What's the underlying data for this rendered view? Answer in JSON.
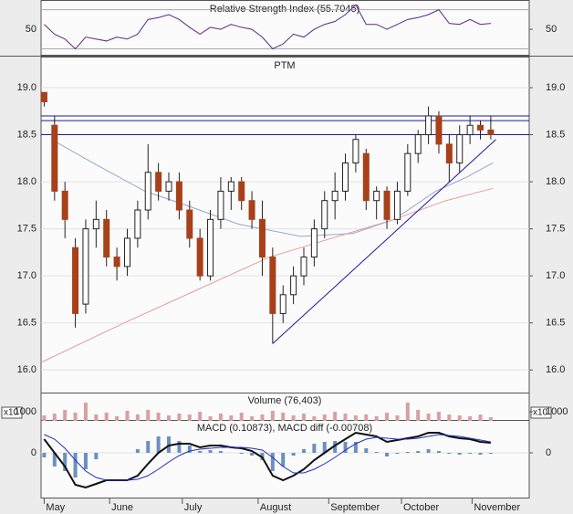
{
  "chart_data": {
    "type": "candlestick",
    "title": "PTM",
    "xlim": [
      0,
      47
    ],
    "xticks": [
      {
        "value": 0.3,
        "label": "May"
      },
      {
        "value": 6.6,
        "label": "June"
      },
      {
        "value": 13.6,
        "label": "July"
      },
      {
        "value": 20.9,
        "label": "August"
      },
      {
        "value": 27.7,
        "label": "September"
      },
      {
        "value": 34.7,
        "label": "October"
      },
      {
        "value": 41.5,
        "label": "November"
      }
    ],
    "ylim": [
      15.76,
      19.33
    ],
    "yticks": [
      {
        "value": 16,
        "label": "16.0"
      },
      {
        "value": 16.5,
        "label": "16.5"
      },
      {
        "value": 17,
        "label": "17.0"
      },
      {
        "value": 17.5,
        "label": "17.5"
      },
      {
        "value": 18,
        "label": "18.0"
      },
      {
        "value": 18.5,
        "label": "18.5"
      },
      {
        "value": 19,
        "label": "19.0"
      }
    ],
    "up_color": "#ffffff",
    "down_color": "#a8401a",
    "open": [
      18.95,
      18.6,
      17.9,
      17.3,
      16.7,
      17.5,
      17.6,
      17.2,
      17.1,
      17.4,
      17.7,
      18.1,
      17.9,
      18.0,
      17.7,
      17.4,
      17.0,
      17.6,
      17.9,
      18.0,
      17.8,
      17.6,
      17.2,
      16.6,
      16.8,
      17.0,
      17.2,
      17.5,
      17.8,
      17.9,
      18.2,
      18.3,
      17.8,
      17.9,
      17.6,
      17.9,
      18.3,
      18.5,
      18.7,
      18.4,
      18.2,
      18.5,
      18.6,
      18.55
    ],
    "high": [
      18.95,
      18.7,
      18.0,
      17.4,
      17.6,
      17.8,
      17.7,
      17.3,
      17.5,
      17.8,
      18.4,
      18.2,
      18.1,
      18.1,
      17.8,
      17.5,
      17.7,
      18.05,
      18.05,
      18.05,
      17.9,
      17.8,
      17.3,
      16.9,
      17.1,
      17.3,
      17.6,
      17.9,
      18.1,
      18.3,
      18.5,
      18.35,
      17.95,
      17.95,
      18.0,
      18.4,
      18.55,
      18.8,
      18.75,
      18.5,
      18.6,
      18.7,
      18.65,
      18.7
    ],
    "low": [
      18.8,
      17.8,
      17.4,
      16.45,
      16.6,
      17.3,
      17.1,
      16.95,
      17.0,
      17.3,
      17.6,
      17.8,
      17.8,
      17.6,
      17.3,
      16.95,
      16.95,
      17.5,
      17.7,
      17.7,
      17.5,
      17.0,
      16.28,
      16.5,
      16.7,
      16.9,
      17.1,
      17.4,
      17.6,
      17.8,
      18.1,
      17.7,
      17.6,
      17.5,
      17.55,
      17.85,
      18.2,
      18.4,
      18.3,
      18.0,
      18.1,
      18.4,
      18.45,
      18.45
    ],
    "close": [
      18.85,
      17.9,
      17.6,
      16.6,
      17.5,
      17.6,
      17.2,
      17.1,
      17.4,
      17.7,
      18.1,
      17.9,
      18.0,
      17.7,
      17.4,
      17.0,
      17.6,
      17.9,
      18.0,
      17.8,
      17.6,
      17.2,
      16.6,
      16.8,
      17.0,
      17.2,
      17.5,
      17.8,
      17.9,
      18.2,
      18.45,
      17.8,
      17.9,
      17.6,
      17.9,
      18.3,
      18.5,
      18.7,
      18.4,
      18.2,
      18.5,
      18.6,
      18.55,
      18.5
    ],
    "hlines": [
      18.7,
      18.65,
      18.5
    ],
    "hline_color": "#1c1c96",
    "trendline": {
      "color": "#1c1c96",
      "x": [
        22.3,
        43.8
      ],
      "values": [
        16.28,
        18.45
      ]
    },
    "averages": [
      {
        "color": "#9aa3d8",
        "x": [
          1,
          5,
          10,
          14,
          19,
          25,
          30,
          34,
          38,
          41,
          43.5
        ],
        "values": [
          18.45,
          18.2,
          17.9,
          17.75,
          17.55,
          17.42,
          17.45,
          17.6,
          17.9,
          18.05,
          18.2
        ]
      },
      {
        "color": "#e89aa0",
        "x": [
          0,
          8,
          15,
          22,
          28,
          34,
          39,
          43.5
        ],
        "values": [
          16.08,
          16.5,
          16.85,
          17.2,
          17.4,
          17.6,
          17.8,
          17.93
        ]
      }
    ],
    "rsi": {
      "title": "Relative Strength Index (55.7045)",
      "color": "#5a2a8a",
      "ylim": [
        23,
        79
      ],
      "yticks": [
        50
      ],
      "levels": [
        30,
        70
      ],
      "values": [
        55,
        45,
        40,
        30,
        42,
        40,
        38,
        42,
        40,
        45,
        60,
        62,
        65,
        60,
        52,
        45,
        52,
        50,
        55,
        52,
        50,
        42,
        30,
        35,
        45,
        42,
        50,
        55,
        58,
        65,
        75,
        55,
        55,
        50,
        55,
        60,
        62,
        65,
        70,
        56,
        55,
        60,
        55,
        56
      ]
    },
    "volume": {
      "title": "Volume (76,403)",
      "multiplier": "x10",
      "color": "#d9a0a0",
      "ylim": [
        0,
        3000
      ],
      "yticks": [
        1000
      ],
      "values": [
        600,
        800,
        1200,
        900,
        2000,
        700,
        900,
        500,
        1100,
        700,
        1200,
        900,
        600,
        800,
        700,
        1000,
        500,
        800,
        600,
        900,
        500,
        700,
        1100,
        900,
        600,
        800,
        500,
        700,
        1000,
        800,
        600,
        700,
        500,
        900,
        600,
        2000,
        1200,
        800,
        1000,
        700,
        600,
        500,
        700,
        400
      ]
    },
    "macd": {
      "title": "MACD (0.10873), MACD diff (-0.00708)",
      "multiplier": "x10",
      "ylim": [
        -0.5,
        0.35
      ],
      "yticks": [
        0
      ],
      "series": [
        {
          "color": "#111111",
          "values": [
            0.15,
            0.0,
            -0.15,
            -0.35,
            -0.38,
            -0.34,
            -0.3,
            -0.3,
            -0.3,
            -0.25,
            -0.12,
            0.0,
            0.08,
            0.1,
            0.1,
            0.06,
            0.08,
            0.08,
            0.06,
            0.05,
            0.02,
            -0.05,
            -0.25,
            -0.3,
            -0.25,
            -0.18,
            -0.08,
            0.0,
            0.08,
            0.15,
            0.22,
            0.2,
            0.18,
            0.12,
            0.14,
            0.16,
            0.18,
            0.22,
            0.22,
            0.18,
            0.16,
            0.15,
            0.12,
            0.11
          ]
        },
        {
          "color": "#2030c0",
          "values": [
            0.2,
            0.15,
            0.05,
            -0.08,
            -0.2,
            -0.27,
            -0.3,
            -0.3,
            -0.3,
            -0.29,
            -0.25,
            -0.18,
            -0.1,
            -0.03,
            0.02,
            0.04,
            0.05,
            0.06,
            0.06,
            0.06,
            0.05,
            0.03,
            -0.05,
            -0.15,
            -0.22,
            -0.22,
            -0.18,
            -0.12,
            -0.05,
            0.03,
            0.1,
            0.15,
            0.17,
            0.16,
            0.15,
            0.15,
            0.16,
            0.18,
            0.2,
            0.19,
            0.18,
            0.16,
            0.14,
            0.12
          ]
        }
      ],
      "hist_color": "#6a90c0",
      "hist": [
        -0.05,
        -0.15,
        -0.2,
        -0.27,
        -0.18,
        -0.07,
        0,
        0,
        0,
        0.04,
        0.13,
        0.18,
        0.18,
        0.13,
        0.08,
        0.02,
        0.03,
        0.02,
        0,
        -0.01,
        -0.03,
        -0.08,
        -0.2,
        -0.15,
        -0.03,
        0.04,
        0.1,
        0.12,
        0.13,
        0.12,
        0.12,
        0.05,
        0.01,
        -0.04,
        -0.01,
        0.01,
        0.02,
        0.04,
        0.02,
        -0.01,
        -0.02,
        -0.01,
        -0.02,
        -0.01
      ]
    }
  }
}
